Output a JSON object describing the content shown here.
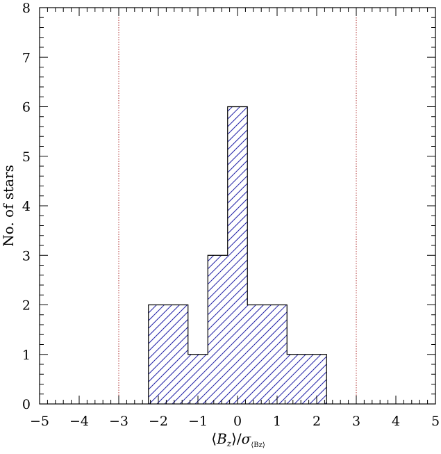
{
  "chart_data": {
    "type": "bar",
    "title": "",
    "ylabel": "No. of stars",
    "xlabel_parts": {
      "open": "⟨",
      "var": "B",
      "sub": "z",
      "close": "⟩",
      "slash": "/",
      "sigma": "σ",
      "sigma_sub": "⟨Bz⟩"
    },
    "xlim": [
      -5,
      5
    ],
    "ylim": [
      0,
      8
    ],
    "xticks": [
      -5,
      -4,
      -3,
      -2,
      -1,
      0,
      1,
      2,
      3,
      4,
      5
    ],
    "yticks": [
      0,
      1,
      2,
      3,
      4,
      5,
      6,
      7,
      8
    ],
    "xtick_labels": [
      "−5",
      "−4",
      "−3",
      "−2",
      "−1",
      "0",
      "1",
      "2",
      "3",
      "4",
      "5"
    ],
    "ytick_labels": [
      "0",
      "1",
      "2",
      "3",
      "4",
      "5",
      "6",
      "7",
      "8"
    ],
    "bins": [
      {
        "x0": -2.25,
        "x1": -1.25,
        "count": 2
      },
      {
        "x0": -1.25,
        "x1": -0.75,
        "count": 1
      },
      {
        "x0": -0.75,
        "x1": -0.25,
        "count": 3
      },
      {
        "x0": -0.25,
        "x1": 0.25,
        "count": 6
      },
      {
        "x0": 0.25,
        "x1": 1.25,
        "count": 2
      },
      {
        "x0": 1.25,
        "x1": 2.25,
        "count": 1
      }
    ],
    "vlines": [
      -3,
      3
    ],
    "colors": {
      "hatch": "#2424a8",
      "vline": "#b03030",
      "axis": "#000000"
    },
    "hatch": "diagonal",
    "grid": false
  }
}
